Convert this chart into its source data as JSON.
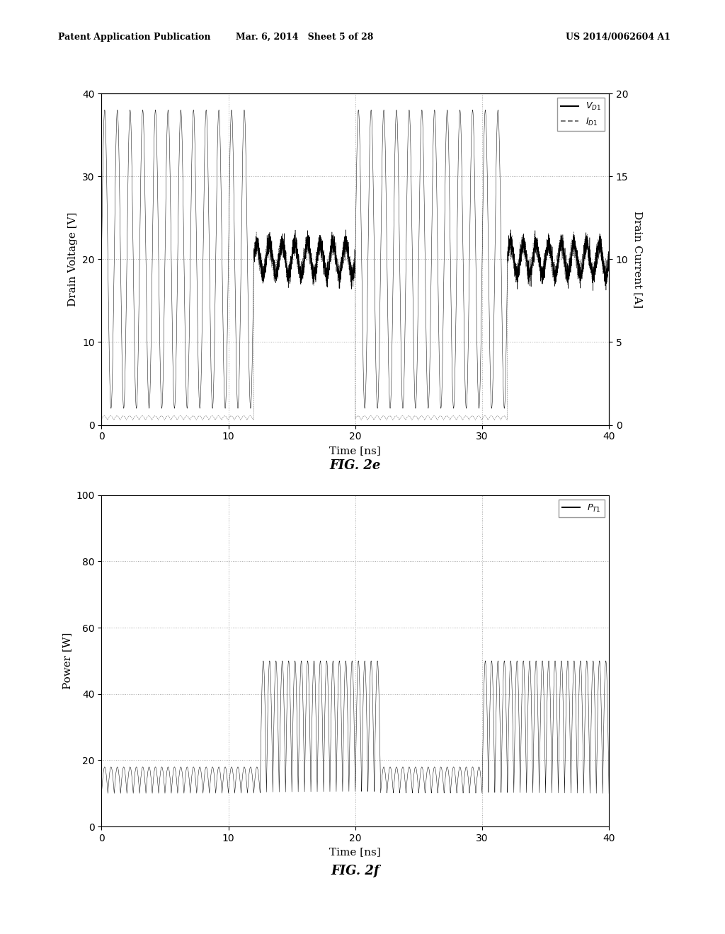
{
  "fig2e": {
    "xlabel": "Time [ns]",
    "ylabel_left": "Drain Voltage [V]",
    "ylabel_right": "Drain Current [A]",
    "xlim": [
      0,
      40
    ],
    "ylim_left": [
      0,
      40
    ],
    "ylim_right": [
      0,
      20
    ],
    "xticks": [
      0,
      10,
      20,
      30,
      40
    ],
    "yticks_left": [
      0,
      10,
      20,
      30,
      40
    ],
    "yticks_right": [
      0,
      5,
      10,
      15,
      20
    ],
    "caption": "FIG. 2e"
  },
  "fig2f": {
    "xlabel": "Time [ns]",
    "ylabel": "Power [W]",
    "xlim": [
      0,
      40
    ],
    "ylim": [
      0,
      100
    ],
    "xticks": [
      0,
      10,
      20,
      30,
      40
    ],
    "yticks": [
      0,
      20,
      40,
      60,
      80,
      100
    ],
    "caption": "FIG. 2f"
  },
  "header_left": "Patent Application Publication",
  "header_mid": "Mar. 6, 2014   Sheet 5 of 28",
  "header_right": "US 2014/0062604 A1",
  "background_color": "#ffffff",
  "line_color": "#000000",
  "grid_color": "#aaaaaa",
  "grid_style": ":"
}
